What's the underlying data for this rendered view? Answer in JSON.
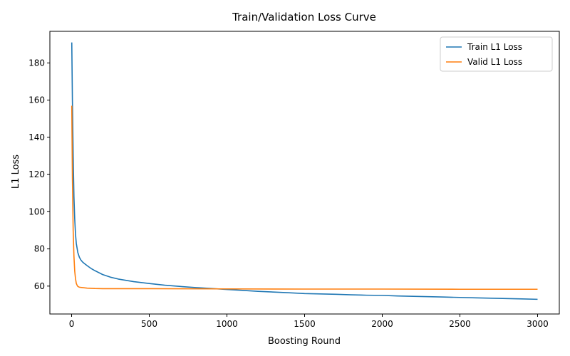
{
  "chart_data": {
    "type": "line",
    "title": "Train/Validation Loss Curve",
    "xlabel": "Boosting Round",
    "ylabel": "L1 Loss",
    "xlim": [
      -140,
      3140
    ],
    "ylim": [
      45,
      197
    ],
    "xticks": [
      0,
      500,
      1000,
      1500,
      2000,
      2500,
      3000
    ],
    "yticks": [
      60,
      80,
      100,
      120,
      140,
      160,
      180
    ],
    "grid": false,
    "legend_position": "upper right",
    "series": [
      {
        "name": "Train L1 Loss",
        "color": "#1f77b4",
        "x": [
          1,
          5,
          10,
          15,
          20,
          25,
          30,
          40,
          50,
          60,
          70,
          80,
          100,
          125,
          150,
          200,
          250,
          300,
          400,
          500,
          600,
          700,
          800,
          900,
          1000,
          1100,
          1200,
          1300,
          1400,
          1500,
          1600,
          1700,
          1800,
          1900,
          2000,
          2100,
          2200,
          2300,
          2400,
          2500,
          2600,
          2700,
          2800,
          2900,
          3000
        ],
        "y": [
          191,
          160,
          130,
          108,
          96,
          88,
          83,
          78,
          75.5,
          74,
          73,
          72.3,
          71,
          69.5,
          68.3,
          66.2,
          64.8,
          63.8,
          62.4,
          61.4,
          60.5,
          59.8,
          59.2,
          58.7,
          58.2,
          57.7,
          57.2,
          56.8,
          56.4,
          56.0,
          55.8,
          55.6,
          55.3,
          55.1,
          55.0,
          54.7,
          54.5,
          54.3,
          54.1,
          53.9,
          53.7,
          53.5,
          53.3,
          53.1,
          52.9
        ]
      },
      {
        "name": "Valid L1 Loss",
        "color": "#ff7f0e",
        "x": [
          1,
          5,
          10,
          15,
          20,
          25,
          30,
          35,
          40,
          50,
          60,
          80,
          100,
          150,
          200,
          300,
          500,
          1000,
          1500,
          2000,
          2500,
          3000
        ],
        "y": [
          157,
          118,
          90,
          76,
          68,
          64,
          61.5,
          60.5,
          59.8,
          59.4,
          59.3,
          59.1,
          58.9,
          58.7,
          58.6,
          58.6,
          58.6,
          58.5,
          58.4,
          58.4,
          58.3,
          58.3
        ]
      }
    ]
  }
}
